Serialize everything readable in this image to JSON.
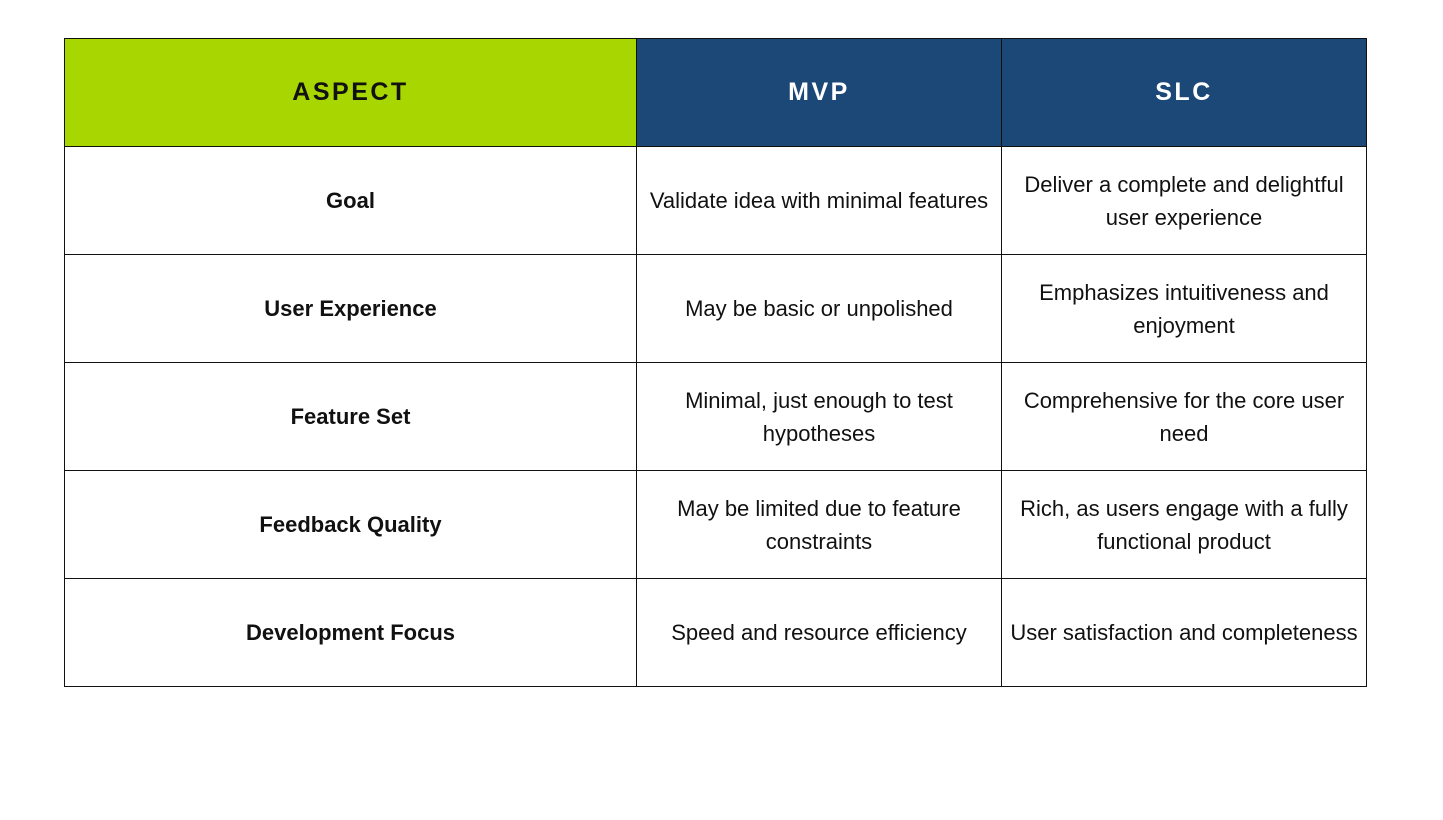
{
  "table": {
    "headers": {
      "aspect": "ASPECT",
      "mvp": "MVP",
      "slc": "SLC"
    },
    "rows": [
      {
        "aspect": "Goal",
        "mvp": "Validate idea with minimal features",
        "slc": "Deliver a complete and delightful user experience"
      },
      {
        "aspect": "User Experience",
        "mvp": "May be basic or unpolished",
        "slc": "Emphasizes intuitiveness and enjoyment"
      },
      {
        "aspect": "Feature Set",
        "mvp": "Minimal, just enough to test hypotheses",
        "slc": "Comprehensive for the core user need"
      },
      {
        "aspect": "Feedback Quality",
        "mvp": "May be limited due to feature constraints",
        "slc": "Rich, as users engage with a fully functional product"
      },
      {
        "aspect": "Development Focus",
        "mvp": "Speed and resource efficiency",
        "slc": "User satisfaction and completeness"
      }
    ]
  },
  "colors": {
    "aspect_header_bg": "#a8d600",
    "mvp_slc_header_bg": "#1c4878",
    "border": "#111111"
  }
}
